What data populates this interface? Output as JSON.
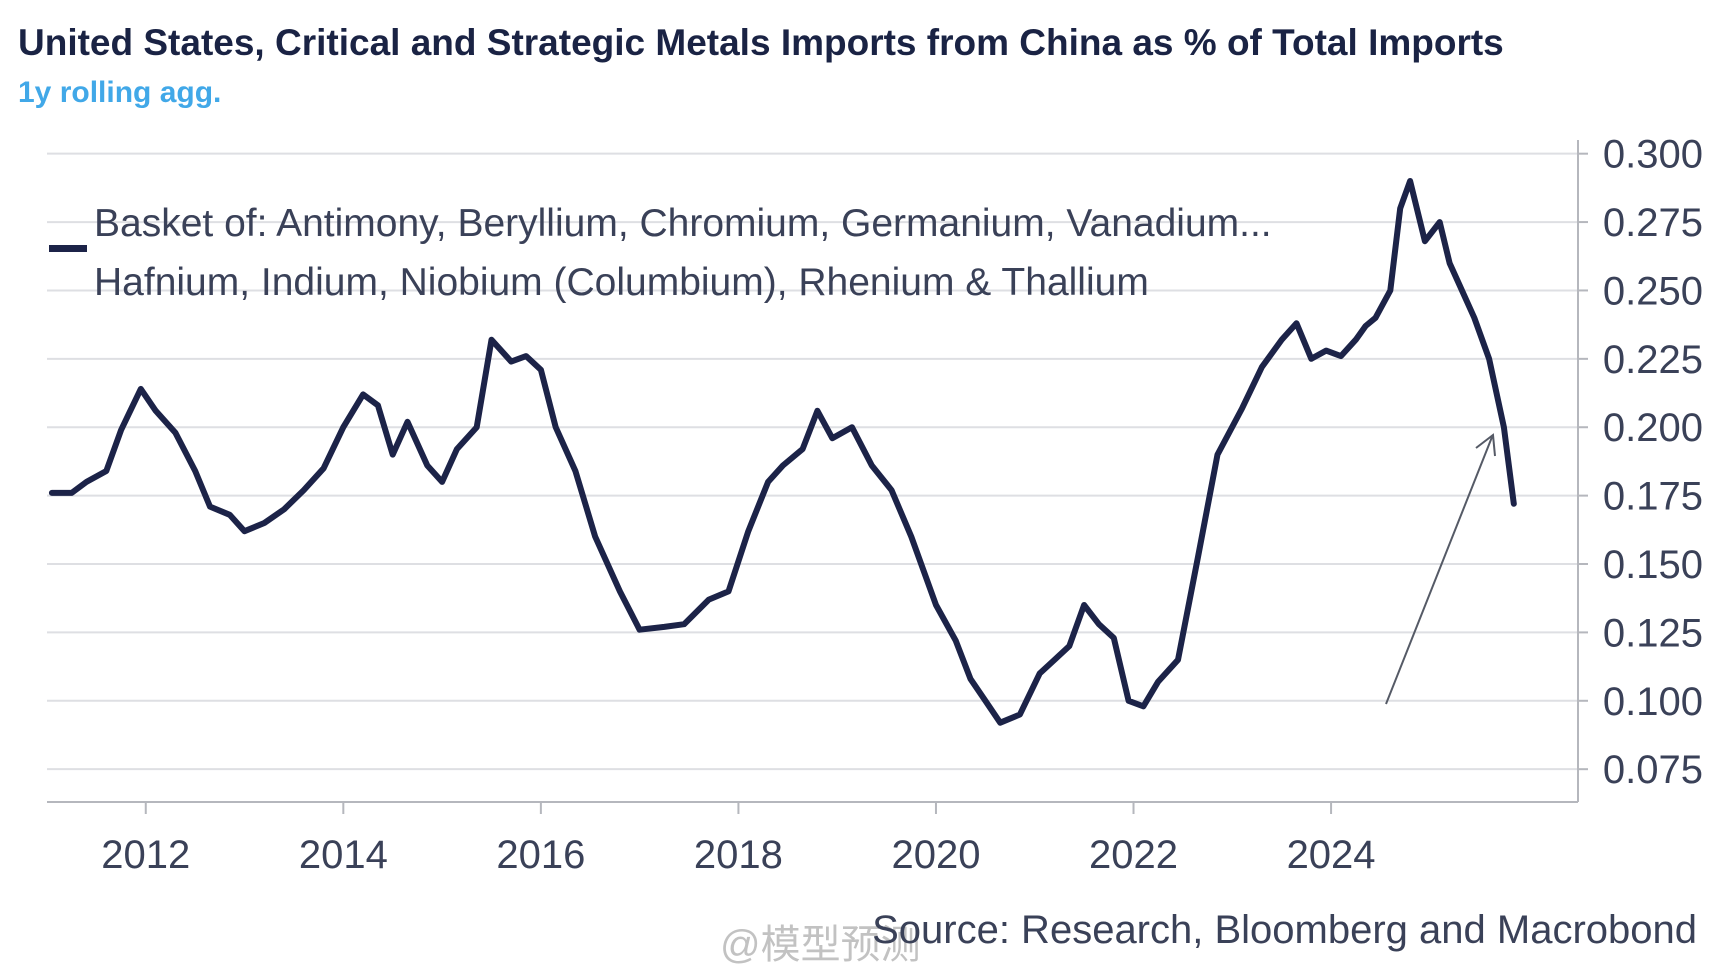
{
  "chart_data": {
    "type": "line",
    "title": "United States, Critical and Strategic Metals Imports from China as % of Total Imports",
    "subtitle": "1y rolling agg.",
    "legend": {
      "line1": "Basket of: Antimony, Beryllium, Chromium, Germanium, Vanadium...",
      "line2": "Hafnium, Indium, Niobium (Columbium), Rhenium & Thallium",
      "color": "#1c2348",
      "position": "top-left"
    },
    "xlabel": "",
    "ylabel": "",
    "xlim": [
      2011.0,
      2026.5
    ],
    "ylim": [
      0.063,
      0.305
    ],
    "x_ticks": [
      "2012",
      "2014",
      "2016",
      "2018",
      "2020",
      "2022",
      "2024"
    ],
    "y_ticks": [
      "0.075",
      "0.100",
      "0.125",
      "0.150",
      "0.175",
      "0.200",
      "0.225",
      "0.250",
      "0.275",
      "0.300"
    ],
    "grid": "horizontal",
    "y_axis_side": "right",
    "annotation": "arrow pointing up toward latest values",
    "series": [
      {
        "name": "Basket of: Antimony, Beryllium, Chromium, Germanium, Vanadium... Hafnium, Indium, Niobium (Columbium), Rhenium & Thallium",
        "color": "#1c2348",
        "x": [
          2011.05,
          2011.25,
          2011.4,
          2011.6,
          2011.75,
          2011.95,
          2012.1,
          2012.3,
          2012.5,
          2012.65,
          2012.85,
          2013.0,
          2013.2,
          2013.4,
          2013.6,
          2013.8,
          2014.0,
          2014.2,
          2014.35,
          2014.5,
          2014.65,
          2014.85,
          2015.0,
          2015.15,
          2015.35,
          2015.5,
          2015.7,
          2015.85,
          2016.0,
          2016.15,
          2016.35,
          2016.55,
          2016.8,
          2017.0,
          2017.25,
          2017.45,
          2017.7,
          2017.9,
          2018.1,
          2018.3,
          2018.45,
          2018.65,
          2018.8,
          2018.95,
          2019.15,
          2019.35,
          2019.55,
          2019.75,
          2020.0,
          2020.2,
          2020.35,
          2020.5,
          2020.65,
          2020.85,
          2021.05,
          2021.2,
          2021.35,
          2021.5,
          2021.65,
          2021.8,
          2021.95,
          2022.1,
          2022.25,
          2022.45,
          2022.65,
          2022.85,
          2023.1,
          2023.3,
          2023.5,
          2023.65,
          2023.8,
          2023.95,
          2024.1,
          2024.25,
          2024.35,
          2024.45,
          2024.6,
          2024.7,
          2024.8,
          2024.95,
          2025.1,
          2025.2,
          2025.3,
          2025.45,
          2025.6,
          2025.75,
          2025.85
        ],
        "values": [
          0.176,
          0.176,
          0.18,
          0.184,
          0.199,
          0.214,
          0.206,
          0.198,
          0.184,
          0.171,
          0.168,
          0.162,
          0.165,
          0.17,
          0.177,
          0.185,
          0.2,
          0.212,
          0.208,
          0.19,
          0.202,
          0.186,
          0.18,
          0.192,
          0.2,
          0.232,
          0.224,
          0.226,
          0.221,
          0.2,
          0.184,
          0.16,
          0.14,
          0.126,
          0.127,
          0.128,
          0.137,
          0.14,
          0.162,
          0.18,
          0.186,
          0.192,
          0.206,
          0.196,
          0.2,
          0.186,
          0.177,
          0.16,
          0.135,
          0.122,
          0.108,
          0.1,
          0.092,
          0.095,
          0.11,
          0.115,
          0.12,
          0.135,
          0.128,
          0.123,
          0.1,
          0.098,
          0.107,
          0.115,
          0.152,
          0.19,
          0.207,
          0.222,
          0.232,
          0.238,
          0.225,
          0.228,
          0.226,
          0.232,
          0.237,
          0.24,
          0.25,
          0.28,
          0.29,
          0.268,
          0.275,
          0.26,
          0.252,
          0.24,
          0.225,
          0.2,
          0.172
        ]
      }
    ]
  },
  "source_text": "Source: Research, Bloomberg and Macrobond",
  "watermark_text": "@模型预测"
}
